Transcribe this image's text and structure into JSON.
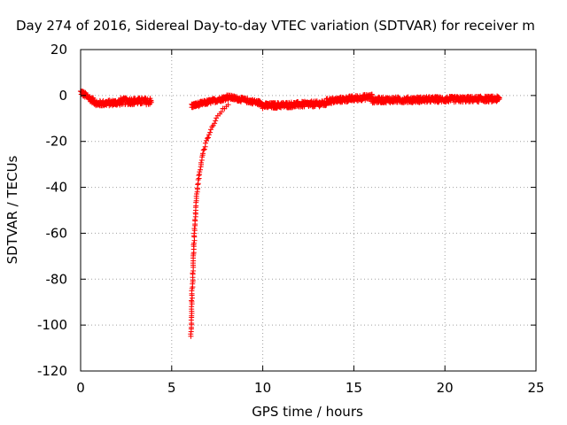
{
  "chart_data": {
    "type": "scatter",
    "title": "Day 274 of 2016, Sidereal Day-to-day VTEC variation (SDTVAR) for receiver m",
    "xlabel": "GPS time / hours",
    "ylabel": "SDTVAR / TECUs",
    "xlim": [
      0,
      25
    ],
    "ylim": [
      -120,
      20
    ],
    "xticks": [
      0,
      5,
      10,
      15,
      20,
      25
    ],
    "yticks": [
      20,
      0,
      -20,
      -40,
      -60,
      -80,
      -100,
      -120
    ],
    "grid": true,
    "marker": "+",
    "color": "#ff0000",
    "segments": [
      {
        "x_start": 0.0,
        "x_end": 1.0,
        "y_start": 1.5,
        "y_end": -4.0,
        "spread": 2.5
      },
      {
        "x_start": 1.0,
        "x_end": 2.2,
        "y_start": -3.5,
        "y_end": -3.0,
        "spread": 2.5
      },
      {
        "x_start": 2.2,
        "x_end": 3.9,
        "y_start": -2.5,
        "y_end": -2.5,
        "spread": 3.0
      },
      {
        "x_start": 6.1,
        "x_end": 8.0,
        "y_start": -4.5,
        "y_end": -1.0,
        "spread": 2.0
      },
      {
        "x_start": 8.0,
        "x_end": 10.0,
        "y_start": -0.5,
        "y_end": -3.5,
        "spread": 2.0
      },
      {
        "x_start": 10.0,
        "x_end": 13.5,
        "y_start": -4.5,
        "y_end": -3.5,
        "spread": 2.5
      },
      {
        "x_start": 13.5,
        "x_end": 16.0,
        "y_start": -2.5,
        "y_end": -0.5,
        "spread": 2.5
      },
      {
        "x_start": 16.0,
        "x_end": 23.0,
        "y_start": -2.0,
        "y_end": -1.5,
        "spread": 2.5
      }
    ],
    "dip": {
      "x_start": 6.05,
      "x_end": 8.1,
      "y_min": -105,
      "y_end": -4.0,
      "points": [
        [
          6.05,
          -105
        ],
        [
          6.08,
          -100
        ],
        [
          6.1,
          -95
        ],
        [
          6.1,
          -90
        ],
        [
          6.12,
          -85
        ],
        [
          6.15,
          -80
        ],
        [
          6.18,
          -75
        ],
        [
          6.2,
          -70
        ],
        [
          6.22,
          -65
        ],
        [
          6.25,
          -60
        ],
        [
          6.28,
          -55
        ],
        [
          6.32,
          -50
        ],
        [
          6.36,
          -45
        ],
        [
          6.42,
          -40
        ],
        [
          6.5,
          -35
        ],
        [
          6.6,
          -30
        ],
        [
          6.72,
          -25
        ],
        [
          6.9,
          -20
        ],
        [
          7.15,
          -15
        ],
        [
          7.45,
          -10
        ],
        [
          7.8,
          -6
        ],
        [
          8.1,
          -4
        ]
      ]
    }
  }
}
